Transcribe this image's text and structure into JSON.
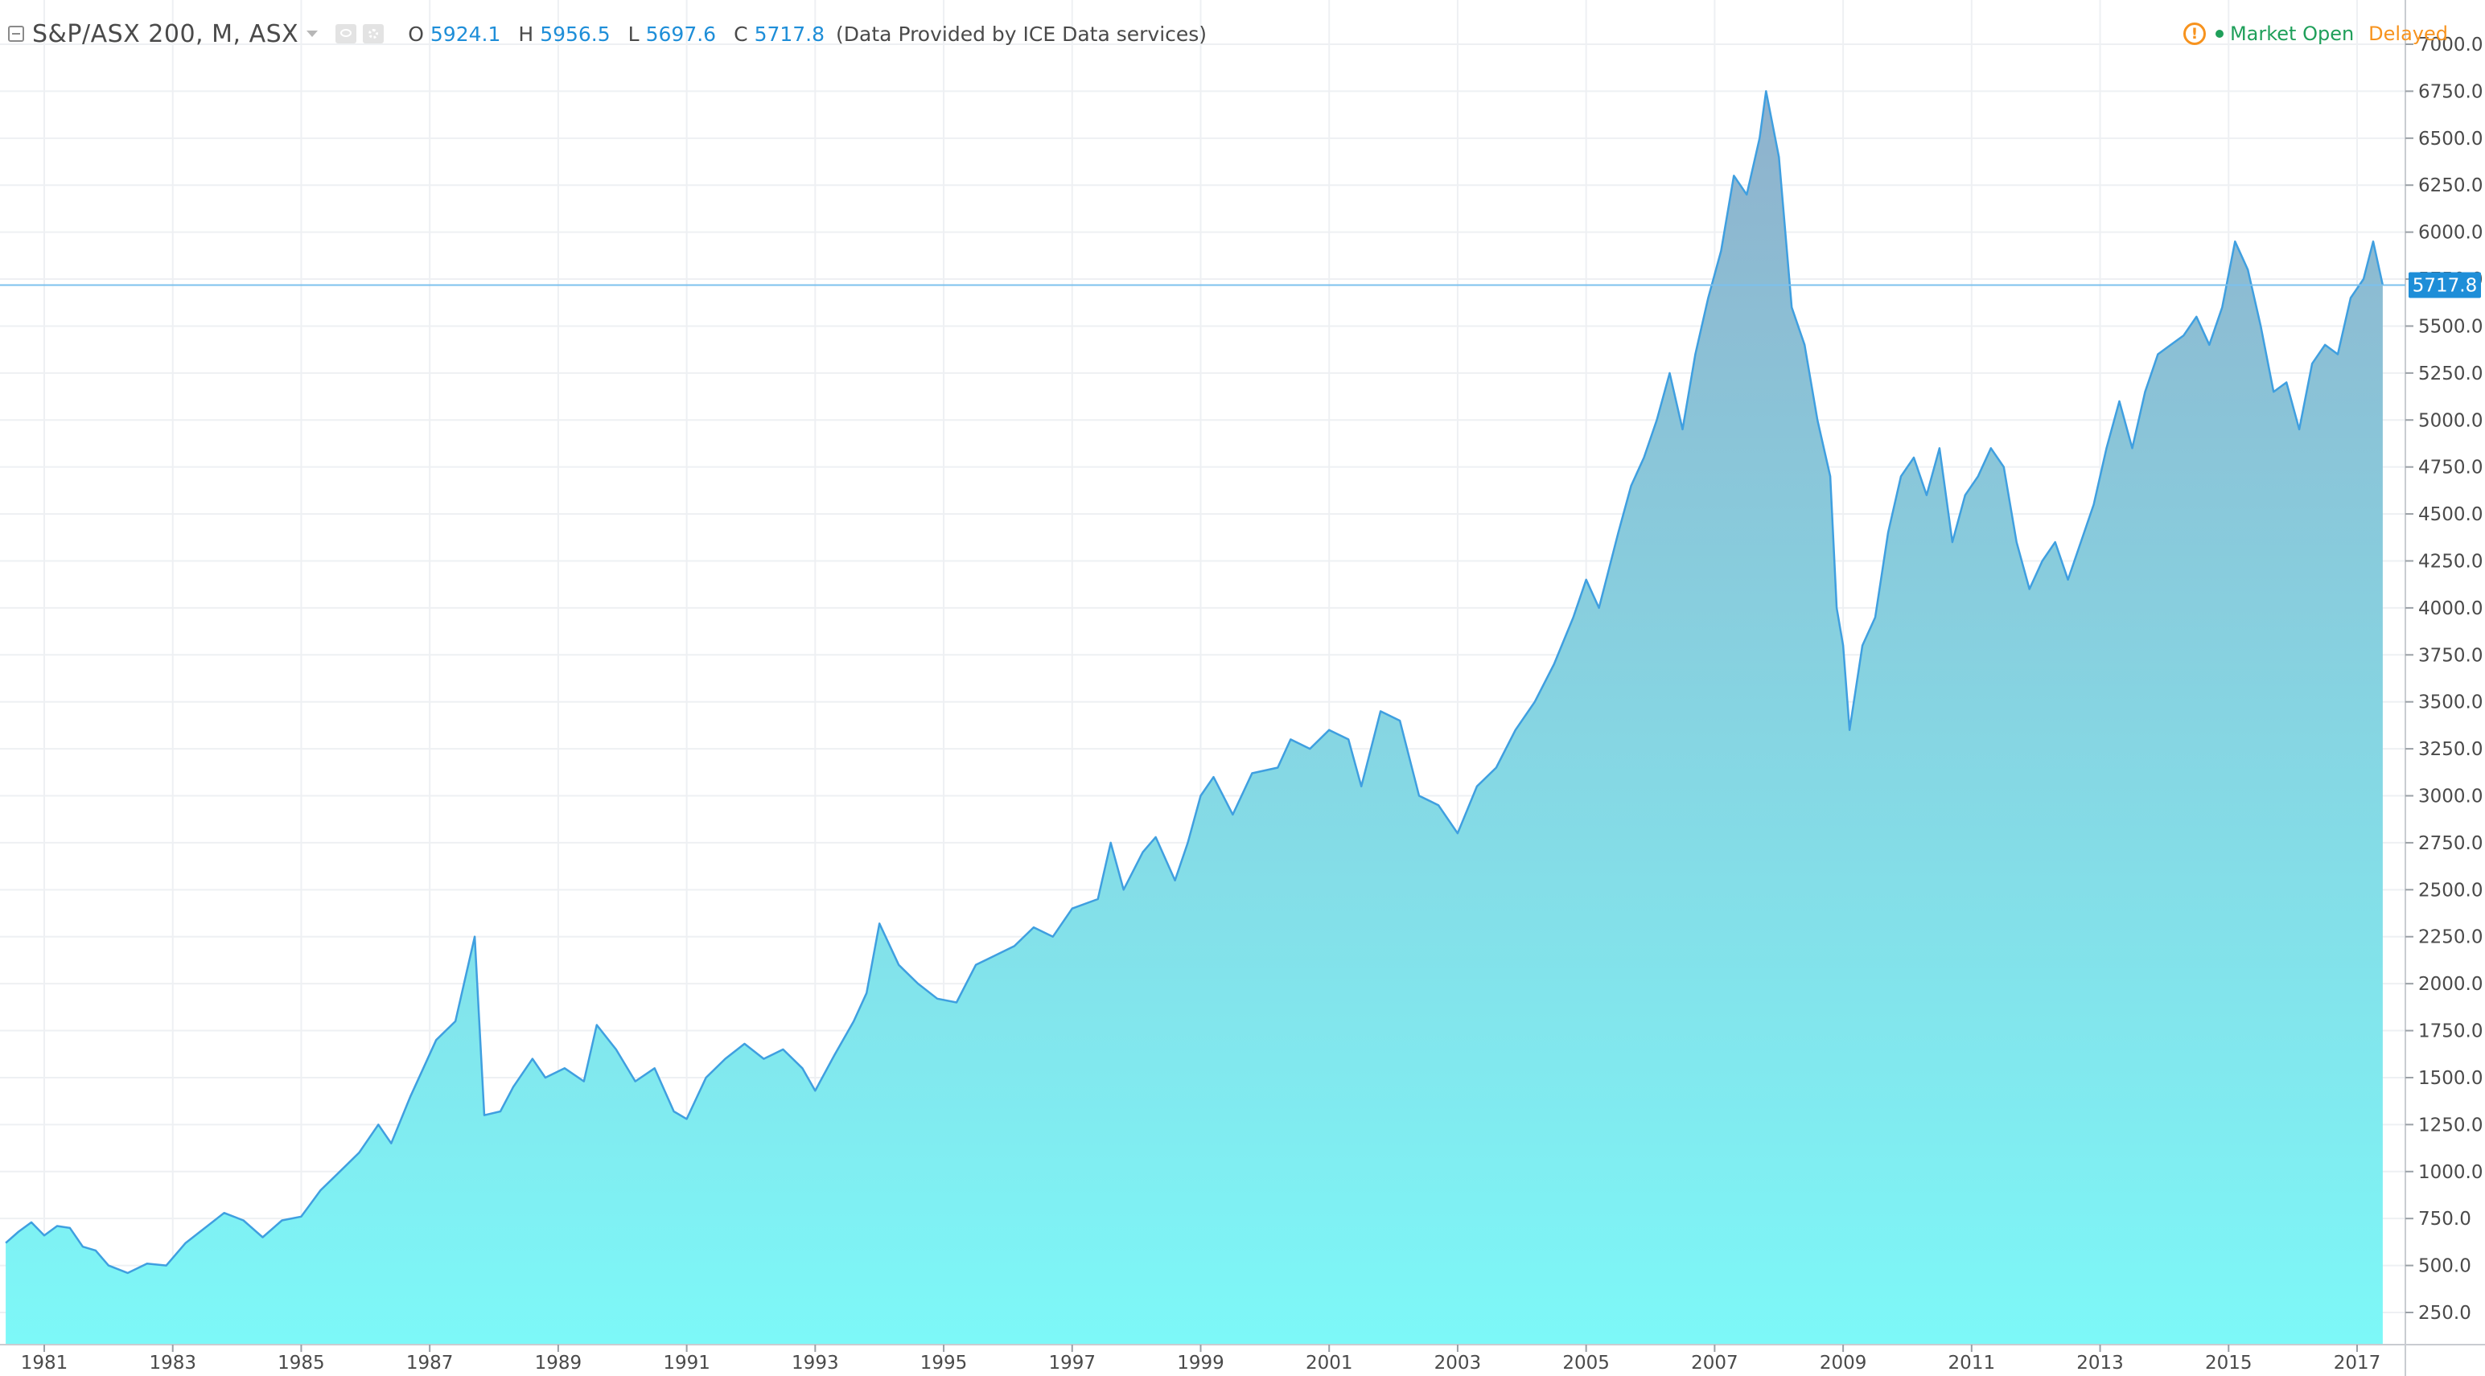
{
  "legend": {
    "symbol": "S&P/ASX 200, M, ASX",
    "open_label": "O",
    "open_value": "5924.1",
    "high_label": "H",
    "high_value": "5956.5",
    "low_label": "L",
    "low_value": "5697.6",
    "close_label": "C",
    "close_value": "5717.8",
    "provider": "(Data Provided by ICE Data services)"
  },
  "status": {
    "market": "Market Open",
    "delay": "Delayed"
  },
  "colors": {
    "line": "#3f9fe0",
    "fill_top": "#8fb1cc",
    "fill_bottom": "#7df8f8",
    "price_label_bg": "#1e8ed8",
    "grid": "#eef0f3"
  },
  "chart_data": {
    "type": "area",
    "interval": "monthly",
    "xlim": [
      1980.4,
      2017.7
    ],
    "ylim": [
      0,
      7200
    ],
    "x_ticks": [
      1981,
      1983,
      1985,
      1987,
      1989,
      1991,
      1993,
      1995,
      1997,
      1999,
      2001,
      2003,
      2005,
      2007,
      2009,
      2011,
      2013,
      2015,
      2017
    ],
    "y_ticks": [
      250,
      500,
      750,
      1000,
      1250,
      1500,
      1750,
      2000,
      2250,
      2500,
      2750,
      3000,
      3250,
      3500,
      3750,
      4000,
      4250,
      4500,
      4750,
      5000,
      5250,
      5500,
      5750,
      6000,
      6250,
      6500,
      6750,
      7000
    ],
    "y_tick_labels": [
      "250.0",
      "500.0",
      "750.0",
      "1000.0",
      "1250.0",
      "1500.0",
      "1750.0",
      "2000.0",
      "2250.0",
      "2500.0",
      "2750.0",
      "3000.0",
      "3250.0",
      "3500.0",
      "3750.0",
      "4000.0",
      "4250.0",
      "4500.0",
      "4750.0",
      "5000.0",
      "5250.0",
      "5500.0",
      "5750.0",
      "6000.0",
      "6250.0",
      "6500.0",
      "6750.0",
      "7000.0"
    ],
    "x_tick_labels": [
      "1981",
      "1983",
      "1985",
      "1987",
      "1989",
      "1991",
      "1993",
      "1995",
      "1997",
      "1999",
      "2001",
      "2003",
      "2005",
      "2007",
      "2009",
      "2011",
      "2013",
      "2015",
      "2017"
    ],
    "last_price": 5717.8,
    "last_price_label": "5717.8",
    "points": [
      [
        1980.4,
        620
      ],
      [
        1980.6,
        680
      ],
      [
        1980.8,
        730
      ],
      [
        1981.0,
        660
      ],
      [
        1981.2,
        710
      ],
      [
        1981.4,
        700
      ],
      [
        1981.6,
        600
      ],
      [
        1981.8,
        580
      ],
      [
        1982.0,
        500
      ],
      [
        1982.3,
        460
      ],
      [
        1982.6,
        510
      ],
      [
        1982.9,
        500
      ],
      [
        1983.2,
        620
      ],
      [
        1983.5,
        700
      ],
      [
        1983.8,
        780
      ],
      [
        1984.1,
        740
      ],
      [
        1984.4,
        650
      ],
      [
        1984.7,
        740
      ],
      [
        1985.0,
        760
      ],
      [
        1985.3,
        900
      ],
      [
        1985.6,
        1000
      ],
      [
        1985.9,
        1100
      ],
      [
        1986.2,
        1250
      ],
      [
        1986.4,
        1150
      ],
      [
        1986.7,
        1400
      ],
      [
        1986.9,
        1550
      ],
      [
        1987.1,
        1700
      ],
      [
        1987.4,
        1800
      ],
      [
        1987.7,
        2250
      ],
      [
        1987.85,
        1300
      ],
      [
        1988.1,
        1320
      ],
      [
        1988.3,
        1450
      ],
      [
        1988.6,
        1600
      ],
      [
        1988.8,
        1500
      ],
      [
        1989.1,
        1550
      ],
      [
        1989.4,
        1480
      ],
      [
        1989.6,
        1780
      ],
      [
        1989.9,
        1650
      ],
      [
        1990.2,
        1480
      ],
      [
        1990.5,
        1550
      ],
      [
        1990.8,
        1320
      ],
      [
        1991.0,
        1280
      ],
      [
        1991.3,
        1500
      ],
      [
        1991.6,
        1600
      ],
      [
        1991.9,
        1680
      ],
      [
        1992.2,
        1600
      ],
      [
        1992.5,
        1650
      ],
      [
        1992.8,
        1550
      ],
      [
        1993.0,
        1430
      ],
      [
        1993.3,
        1620
      ],
      [
        1993.6,
        1800
      ],
      [
        1993.8,
        1950
      ],
      [
        1994.0,
        2320
      ],
      [
        1994.3,
        2100
      ],
      [
        1994.6,
        2000
      ],
      [
        1994.9,
        1920
      ],
      [
        1995.2,
        1900
      ],
      [
        1995.5,
        2100
      ],
      [
        1995.8,
        2150
      ],
      [
        1996.1,
        2200
      ],
      [
        1996.4,
        2300
      ],
      [
        1996.7,
        2250
      ],
      [
        1997.0,
        2400
      ],
      [
        1997.4,
        2450
      ],
      [
        1997.6,
        2750
      ],
      [
        1997.8,
        2500
      ],
      [
        1998.1,
        2700
      ],
      [
        1998.3,
        2780
      ],
      [
        1998.6,
        2550
      ],
      [
        1998.8,
        2750
      ],
      [
        1999.0,
        3000
      ],
      [
        1999.2,
        3100
      ],
      [
        1999.5,
        2900
      ],
      [
        1999.8,
        3120
      ],
      [
        2000.2,
        3150
      ],
      [
        2000.4,
        3300
      ],
      [
        2000.7,
        3250
      ],
      [
        2001.0,
        3350
      ],
      [
        2001.3,
        3300
      ],
      [
        2001.5,
        3050
      ],
      [
        2001.8,
        3450
      ],
      [
        2002.1,
        3400
      ],
      [
        2002.4,
        3000
      ],
      [
        2002.7,
        2950
      ],
      [
        2003.0,
        2800
      ],
      [
        2003.3,
        3050
      ],
      [
        2003.6,
        3150
      ],
      [
        2003.9,
        3350
      ],
      [
        2004.2,
        3500
      ],
      [
        2004.5,
        3700
      ],
      [
        2004.8,
        3950
      ],
      [
        2005.0,
        4150
      ],
      [
        2005.2,
        4000
      ],
      [
        2005.5,
        4400
      ],
      [
        2005.7,
        4650
      ],
      [
        2005.9,
        4800
      ],
      [
        2006.1,
        5000
      ],
      [
        2006.3,
        5250
      ],
      [
        2006.5,
        4950
      ],
      [
        2006.7,
        5350
      ],
      [
        2006.9,
        5650
      ],
      [
        2007.1,
        5900
      ],
      [
        2007.3,
        6300
      ],
      [
        2007.5,
        6200
      ],
      [
        2007.7,
        6500
      ],
      [
        2007.8,
        6750
      ],
      [
        2008.0,
        6400
      ],
      [
        2008.2,
        5600
      ],
      [
        2008.4,
        5400
      ],
      [
        2008.6,
        5000
      ],
      [
        2008.8,
        4700
      ],
      [
        2008.9,
        4000
      ],
      [
        2009.0,
        3800
      ],
      [
        2009.1,
        3350
      ],
      [
        2009.3,
        3800
      ],
      [
        2009.5,
        3950
      ],
      [
        2009.7,
        4400
      ],
      [
        2009.9,
        4700
      ],
      [
        2010.1,
        4800
      ],
      [
        2010.3,
        4600
      ],
      [
        2010.5,
        4850
      ],
      [
        2010.7,
        4350
      ],
      [
        2010.9,
        4600
      ],
      [
        2011.1,
        4700
      ],
      [
        2011.3,
        4850
      ],
      [
        2011.5,
        4750
      ],
      [
        2011.7,
        4350
      ],
      [
        2011.9,
        4100
      ],
      [
        2012.1,
        4250
      ],
      [
        2012.3,
        4350
      ],
      [
        2012.5,
        4150
      ],
      [
        2012.7,
        4350
      ],
      [
        2012.9,
        4550
      ],
      [
        2013.1,
        4850
      ],
      [
        2013.3,
        5100
      ],
      [
        2013.5,
        4850
      ],
      [
        2013.7,
        5150
      ],
      [
        2013.9,
        5350
      ],
      [
        2014.1,
        5400
      ],
      [
        2014.3,
        5450
      ],
      [
        2014.5,
        5550
      ],
      [
        2014.7,
        5400
      ],
      [
        2014.9,
        5600
      ],
      [
        2015.1,
        5950
      ],
      [
        2015.3,
        5800
      ],
      [
        2015.5,
        5500
      ],
      [
        2015.7,
        5150
      ],
      [
        2015.9,
        5200
      ],
      [
        2016.1,
        4950
      ],
      [
        2016.3,
        5300
      ],
      [
        2016.5,
        5400
      ],
      [
        2016.7,
        5350
      ],
      [
        2016.9,
        5650
      ],
      [
        2017.1,
        5750
      ],
      [
        2017.25,
        5950
      ],
      [
        2017.4,
        5717.8
      ]
    ]
  }
}
